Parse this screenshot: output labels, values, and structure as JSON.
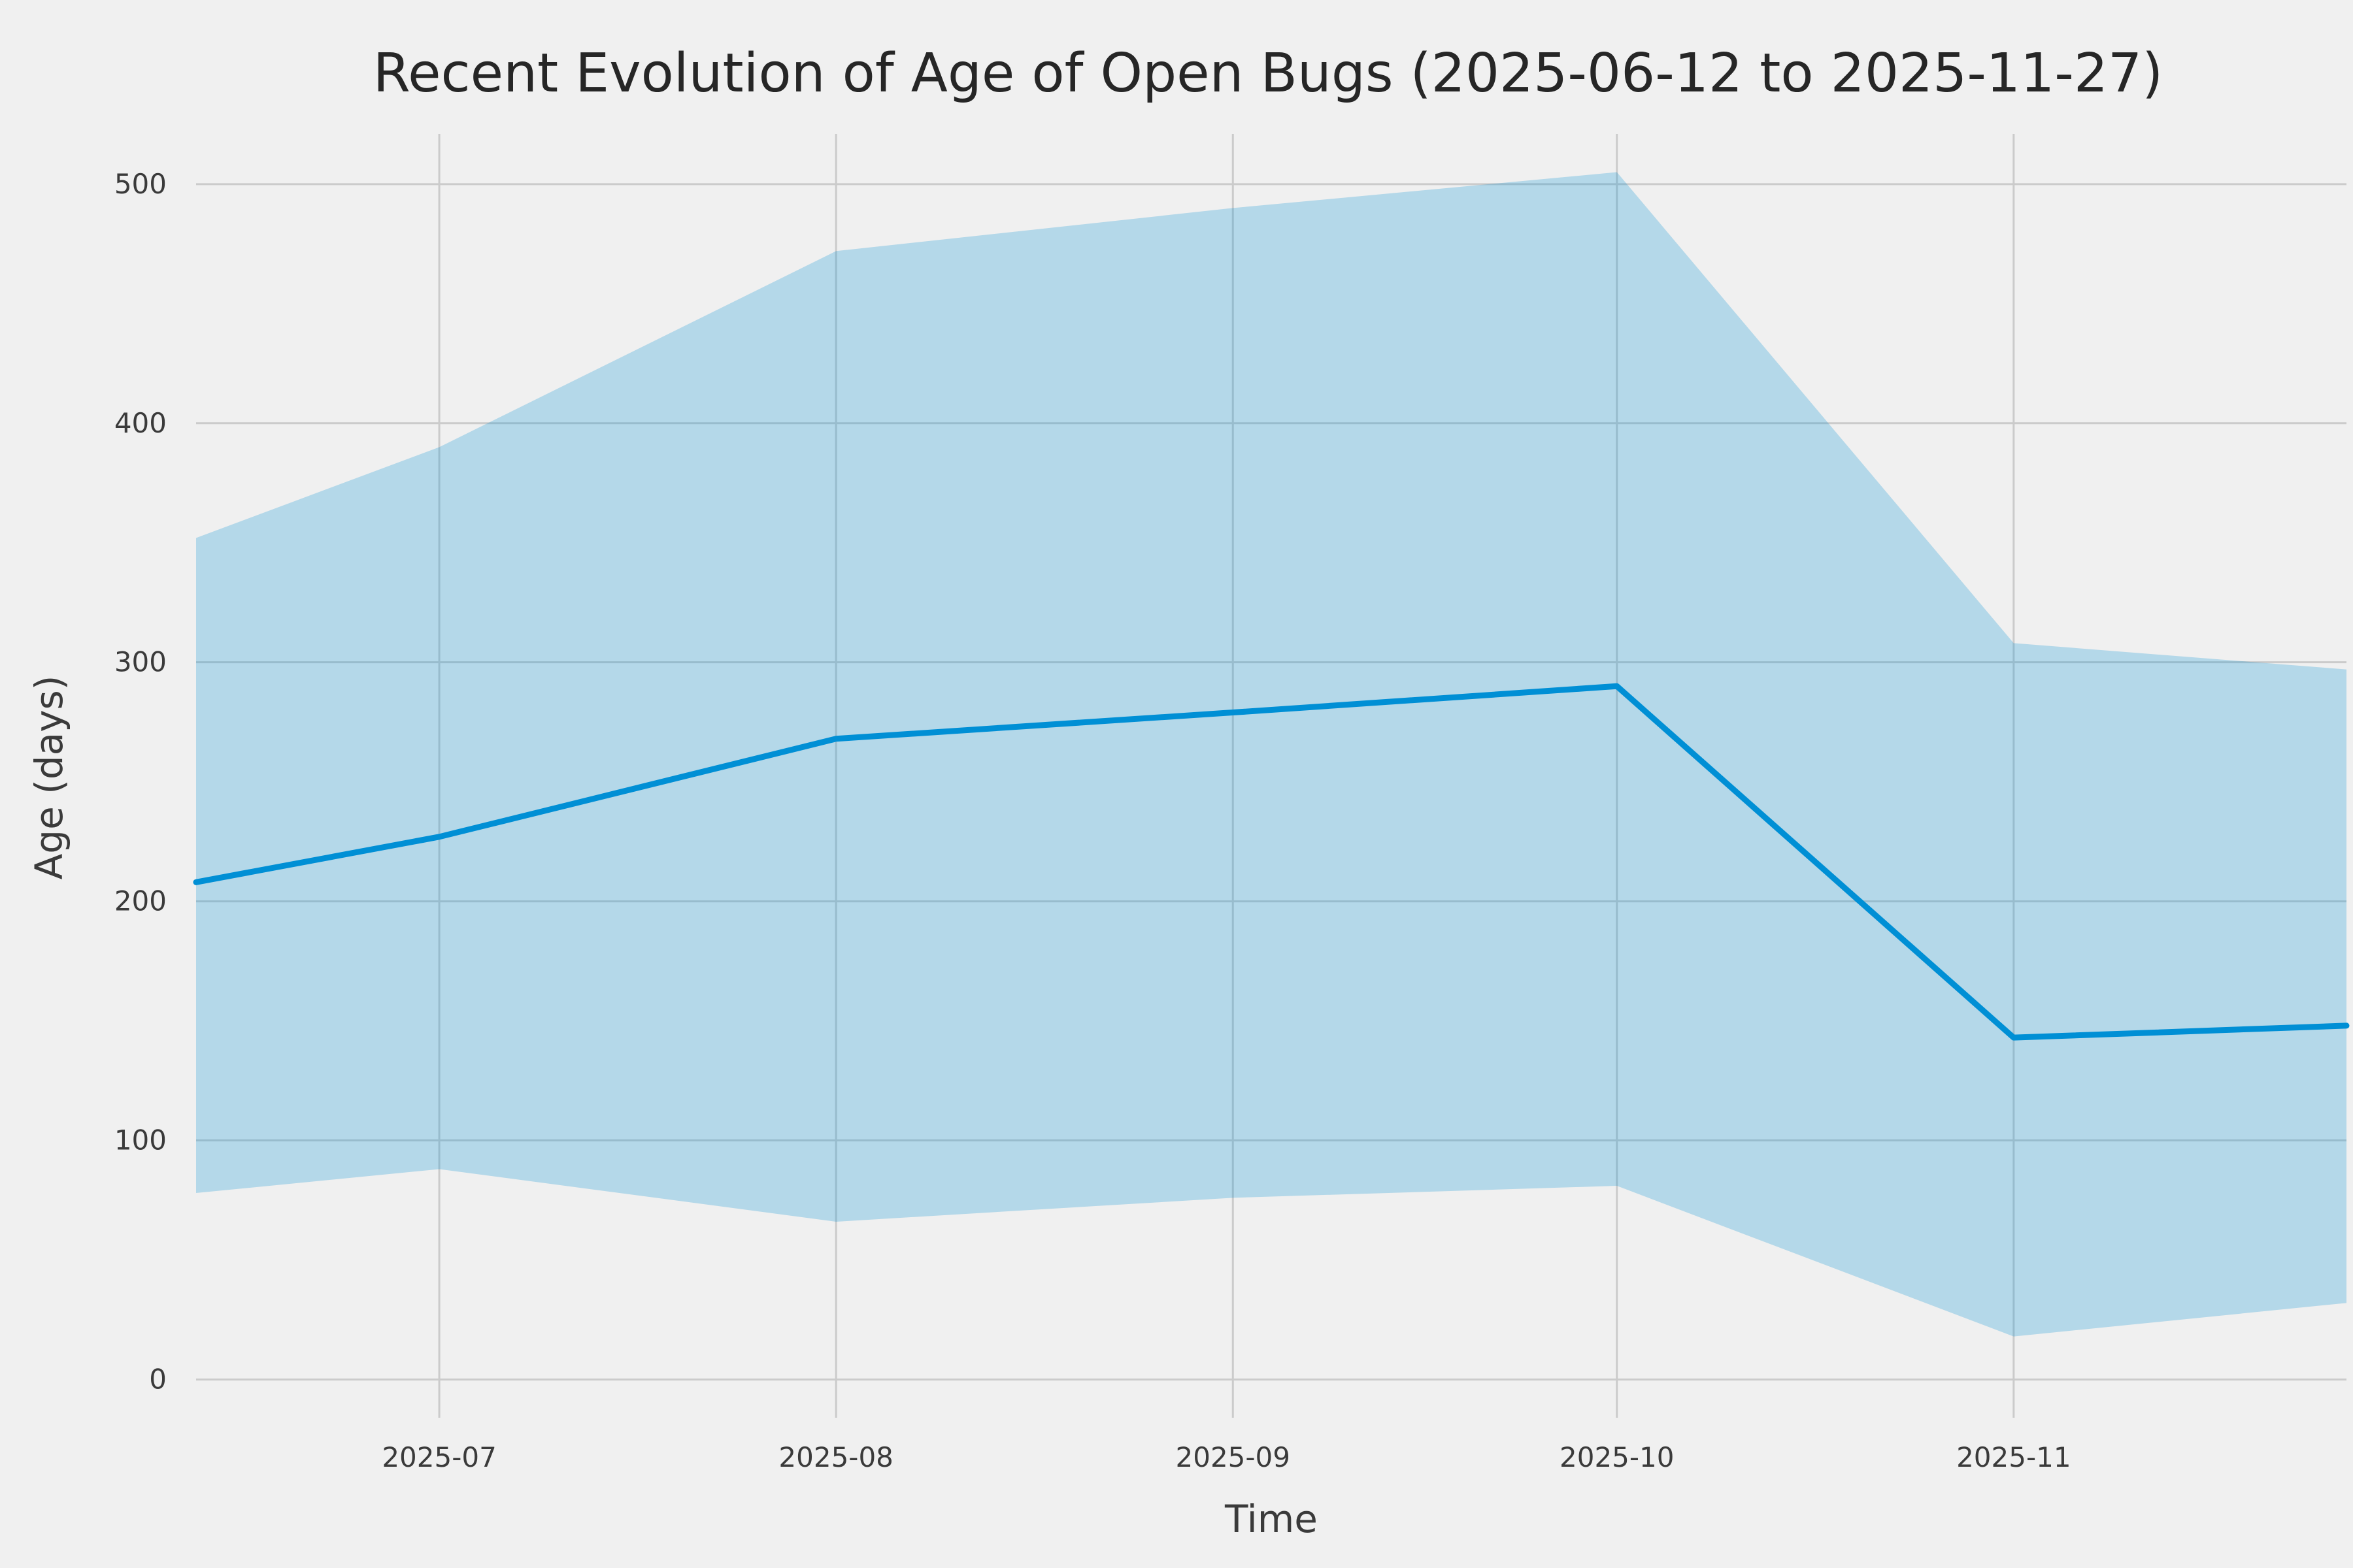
{
  "chart_data": {
    "type": "line",
    "title": "Recent Evolution of Age of Open Bugs (2025-06-12 to 2025-11-27)",
    "xlabel": "Time",
    "ylabel": "Age (days)",
    "x_dates": [
      "2025-06-12",
      "2025-07-01",
      "2025-08-01",
      "2025-09-01",
      "2025-10-01",
      "2025-11-01",
      "2025-11-27"
    ],
    "x_days": [
      0,
      19,
      50,
      81,
      111,
      142,
      168
    ],
    "series": [
      {
        "name": "mean_age",
        "values": [
          208,
          227,
          268,
          279,
          290,
          143,
          148
        ]
      },
      {
        "name": "upper_band",
        "values": [
          352,
          390,
          472,
          490,
          505,
          308,
          297
        ]
      },
      {
        "name": "lower_band",
        "values": [
          78,
          88,
          66,
          76,
          81,
          18,
          32
        ]
      }
    ],
    "xlim_days": [
      0,
      168
    ],
    "ylim": [
      -16,
      521
    ],
    "x_ticks": [
      {
        "label": "2025-07",
        "day": 19
      },
      {
        "label": "2025-08",
        "day": 50
      },
      {
        "label": "2025-09",
        "day": 81
      },
      {
        "label": "2025-10",
        "day": 111
      },
      {
        "label": "2025-11",
        "day": 142
      }
    ],
    "y_ticks": [
      0,
      100,
      200,
      300,
      400,
      500
    ],
    "grid": true,
    "legend": "none",
    "colors": {
      "line": "#008fd5",
      "band": "#008fd5",
      "band_opacity": 0.25,
      "background": "#f0f0f0",
      "grid": "#cbcbcb",
      "text": "#3a3a3a"
    }
  }
}
